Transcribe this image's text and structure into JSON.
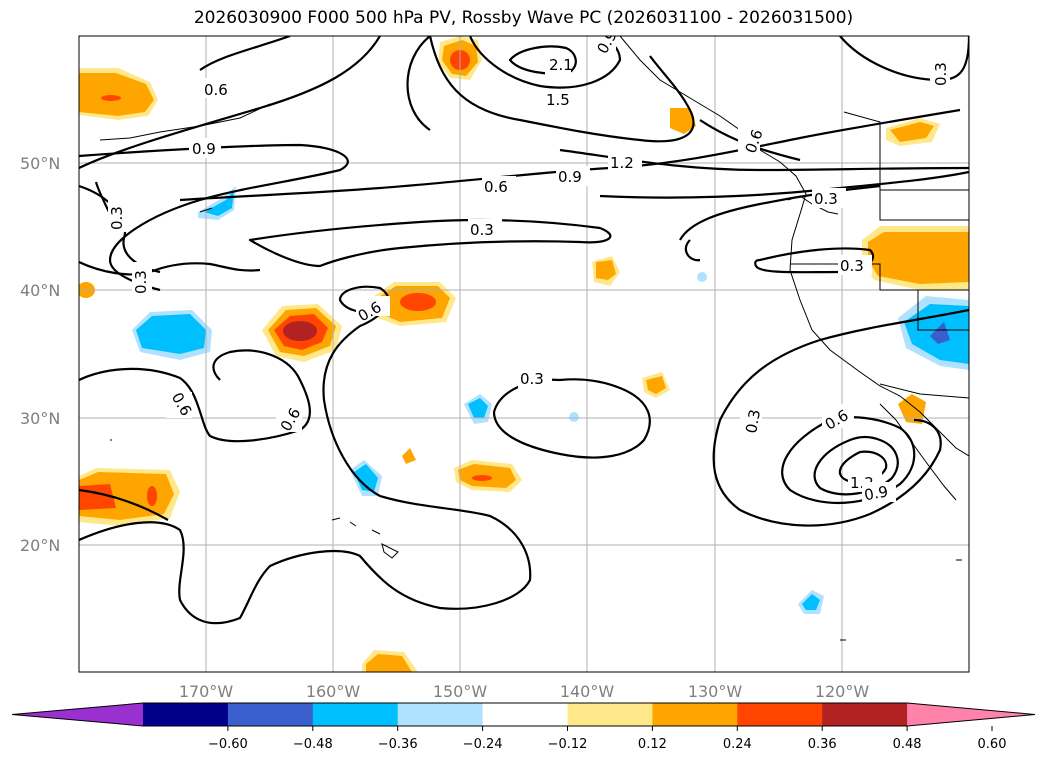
{
  "title": "2026030900 F000 500 hPa PV, Rossby Wave PC (2026031100 - 2026031500)",
  "map": {
    "lon_labels": [
      "170°W",
      "160°W",
      "150°W",
      "140°W",
      "130°W",
      "120°W"
    ],
    "lat_labels": [
      "50°N",
      "40°N",
      "30°N",
      "20°N"
    ],
    "contour_labels": [
      "0.6",
      "2.1",
      "1.5",
      "0.9",
      "1.2",
      "0.6",
      "0.9",
      "0.3",
      "0.3",
      "0.3",
      "0.3",
      "0.3",
      "0.6",
      "0.6",
      "0.6",
      "0.3",
      "0.3",
      "0.6",
      "1.2",
      "0.9",
      "0.3",
      "0.9",
      "0.6"
    ]
  },
  "colorbar": {
    "ticks": [
      "−0.60",
      "−0.48",
      "−0.36",
      "−0.24",
      "−0.12",
      "0.12",
      "0.24",
      "0.36",
      "0.48",
      "0.60"
    ],
    "colors": [
      "#9b30d0",
      "#00008b",
      "#3a5fcd",
      "#00bfff",
      "#b0e2ff",
      "#ffffff",
      "#ffe88a",
      "#ffa500",
      "#ff4500",
      "#b22222",
      "#ff82ab"
    ]
  }
}
